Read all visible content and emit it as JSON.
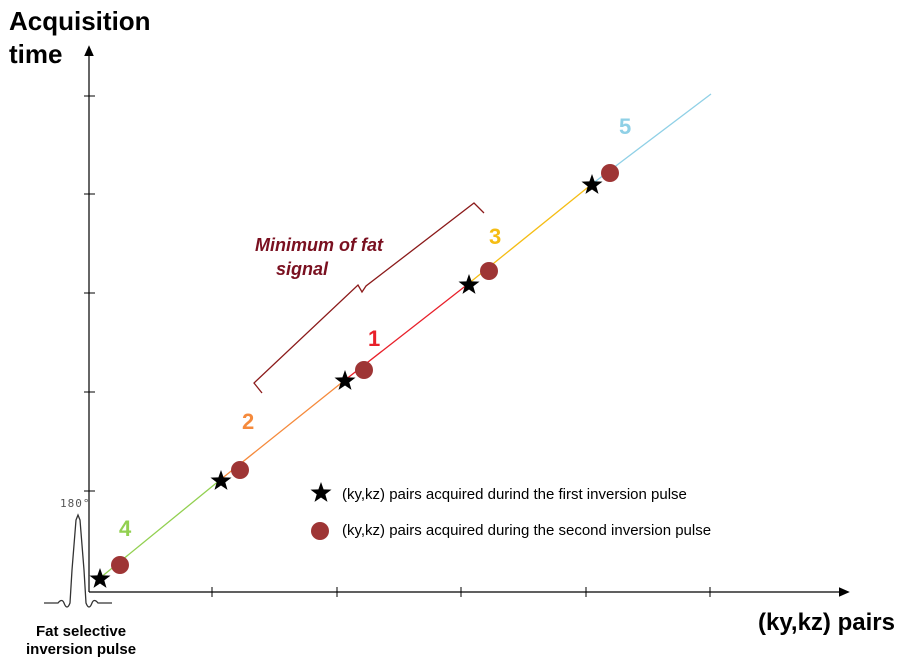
{
  "axes": {
    "y_title_line1": "Acquisition",
    "y_title_line2": "time",
    "x_title": "(ky,kz) pairs"
  },
  "pulse": {
    "angle_mark": "180°",
    "caption_line1": "Fat selective",
    "caption_line2": "inversion pulse"
  },
  "annotation": {
    "line1": "Minimum of fat",
    "line2": "signal"
  },
  "segments": [
    {
      "label": "4",
      "color": "#92d050"
    },
    {
      "label": "2",
      "color": "#f58a3c"
    },
    {
      "label": "1",
      "color": "#e8202a"
    },
    {
      "label": "3",
      "color": "#f5bd14"
    },
    {
      "label": "5",
      "color": "#8fd0e6"
    }
  ],
  "legend": {
    "star_text": "(ky,kz) pairs acquired durind the first inversion pulse",
    "dot_text": "(ky,kz) pairs acquired during the second inversion pulse"
  },
  "colors": {
    "dot": "#9e3535",
    "star": "#000000",
    "bracket": "#8b1a1a"
  }
}
